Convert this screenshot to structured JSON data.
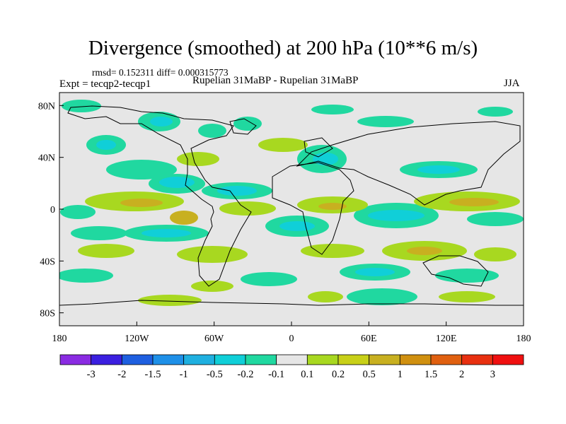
{
  "title": "Divergence (smoothed) at 200 hPa (10**6 m/s)",
  "stats": "rmsd= 0.152311 diff= 0.000315773",
  "expt": "Expt = tecqp2-tecqp1",
  "subtitle": "Rupelian  31MaBP - Rupelian  31MaBP",
  "season": "JJA",
  "map": {
    "lon_range": [
      -180,
      180
    ],
    "lat_range": [
      -90,
      90
    ],
    "lat_ticks": [
      {
        "value": 80,
        "label": "80N"
      },
      {
        "value": 40,
        "label": "40N"
      },
      {
        "value": 0,
        "label": "0"
      },
      {
        "value": -40,
        "label": "40S"
      },
      {
        "value": -80,
        "label": "80S"
      }
    ],
    "lon_ticks": [
      {
        "value": -180,
        "label": "180"
      },
      {
        "value": -120,
        "label": "120W"
      },
      {
        "value": -60,
        "label": "60W"
      },
      {
        "value": 0,
        "label": "0"
      },
      {
        "value": 60,
        "label": "60E"
      },
      {
        "value": 120,
        "label": "120E"
      },
      {
        "value": 180,
        "label": "180"
      }
    ],
    "background_color": "#e6e6e6"
  },
  "colorbar": {
    "colors": [
      "#8a2be2",
      "#3b1fe0",
      "#1e5fe0",
      "#1e90e8",
      "#1fb0e0",
      "#10cfd8",
      "#20d8a0",
      "#e6e6e6",
      "#a8d820",
      "#c8d018",
      "#c8b020",
      "#d09010",
      "#e06010",
      "#e83010",
      "#f01010"
    ],
    "labels": [
      "-3",
      "-2",
      "-1.5",
      "-1",
      "-0.5",
      "-0.2",
      "-0.1",
      "0.1",
      "0.2",
      "0.5",
      "1",
      "1.5",
      "2",
      "3"
    ]
  }
}
